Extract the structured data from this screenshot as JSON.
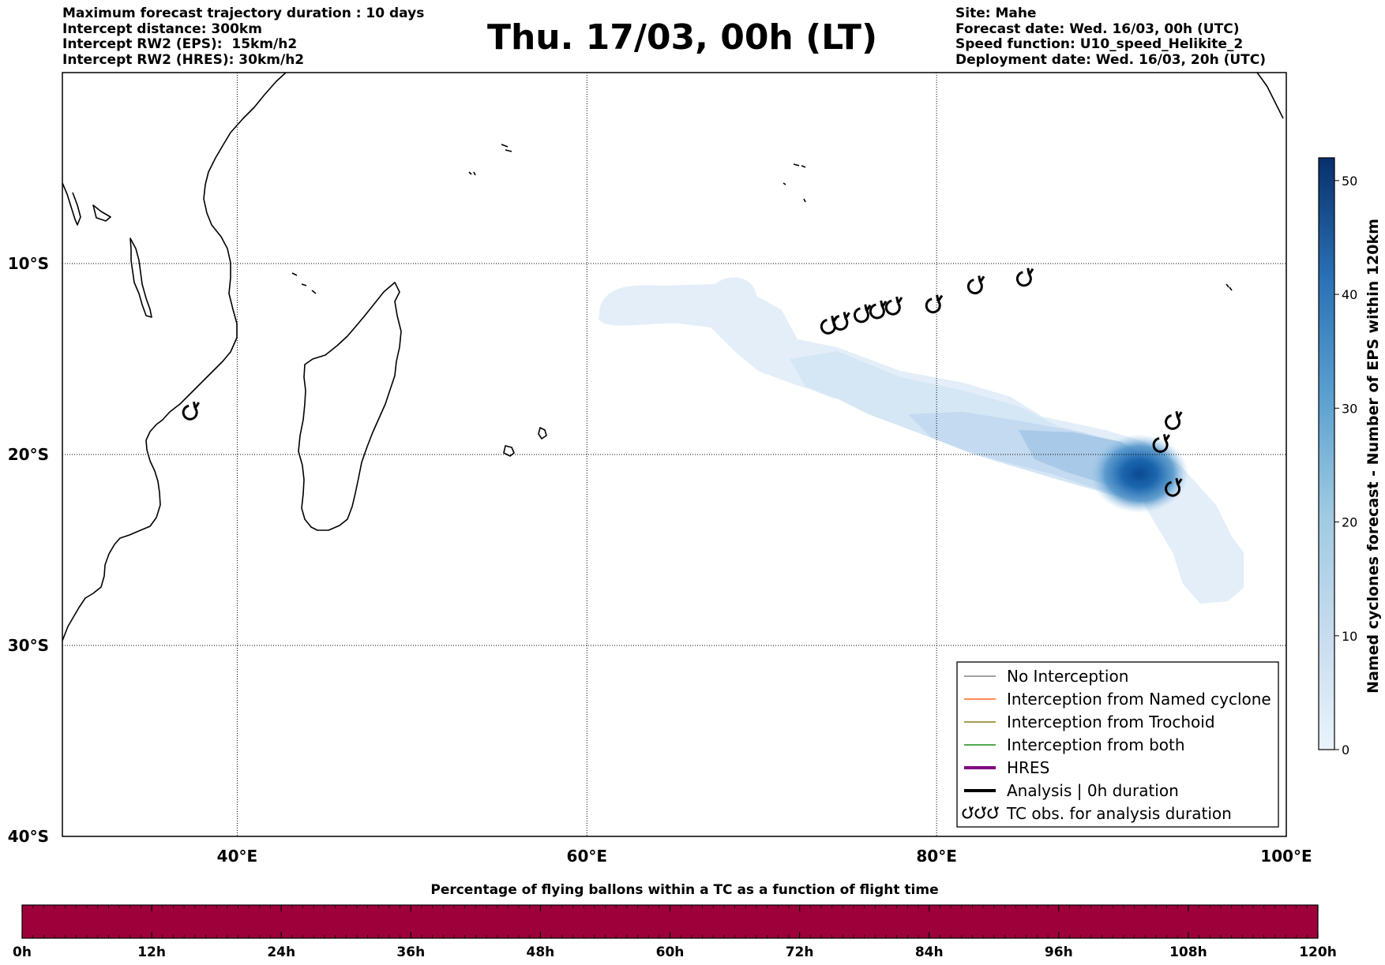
{
  "header_left": [
    "Maximum forecast trajectory duration : 10 days",
    "Intercept distance: 300km",
    "Intercept RW2 (EPS):  15km/h2",
    "Intercept RW2 (HRES): 30km/h2"
  ],
  "header_right": [
    "Site: Mahe",
    "Forecast date: Wed. 16/03, 00h (UTC)",
    "Speed function: U10_speed_Helikite_2",
    "Deployment date: Wed. 16/03, 20h (UTC)"
  ],
  "title": "Thu. 17/03, 00h (LT)",
  "map": {
    "lon_range": [
      30,
      100
    ],
    "lat_range": [
      -40,
      0
    ],
    "lat_gridlines": [
      -10,
      -20,
      -30
    ],
    "lon_gridlines": [
      40,
      60,
      80
    ],
    "lat_labels": [
      {
        "lat": -10,
        "text": "10°S"
      },
      {
        "lat": -20,
        "text": "20°S"
      },
      {
        "lat": -30,
        "text": "30°S"
      },
      {
        "lat": -40,
        "text": "40°S"
      }
    ],
    "lon_labels": [
      {
        "lon": 40,
        "text": "40°E"
      },
      {
        "lon": 60,
        "text": "60°E"
      },
      {
        "lon": 80,
        "text": "80°E"
      },
      {
        "lon": 100,
        "text": "100°E"
      }
    ],
    "coastline_color": "#000000",
    "density_core": {
      "lon": 91.6,
      "lat": -21.0,
      "value": 52
    },
    "tc_observations": [
      {
        "lon": 37.3,
        "lat": -17.8
      },
      {
        "lon": 73.8,
        "lat": -13.3
      },
      {
        "lon": 74.5,
        "lat": -13.1
      },
      {
        "lon": 75.7,
        "lat": -12.7
      },
      {
        "lon": 76.6,
        "lat": -12.5
      },
      {
        "lon": 77.5,
        "lat": -12.3
      },
      {
        "lon": 79.8,
        "lat": -12.2
      },
      {
        "lon": 82.2,
        "lat": -11.2
      },
      {
        "lon": 85.0,
        "lat": -10.8
      },
      {
        "lon": 92.8,
        "lat": -19.5
      },
      {
        "lon": 93.5,
        "lat": -18.3
      },
      {
        "lon": 93.5,
        "lat": -21.8
      }
    ]
  },
  "legend": [
    {
      "label": "No Interception",
      "color": "#808080",
      "width": 1.5
    },
    {
      "label": "Interception from Named cyclone",
      "color": "#ff6a1f",
      "width": 1.5
    },
    {
      "label": "Interception from Trochoid",
      "color": "#8c7b13",
      "width": 1.5
    },
    {
      "label": "Interception from both",
      "color": "#1a8c1a",
      "width": 1.5
    },
    {
      "label": "HRES",
      "color": "#800080",
      "width": 4
    },
    {
      "label": "Analysis | 0h duration",
      "color": "#000000",
      "width": 4
    },
    {
      "label": "TC obs. for analysis duration",
      "color": "#000000",
      "symbol": "tc"
    }
  ],
  "colorbar": {
    "title": "Named cyclones forecast - Number of EPS within 120km",
    "range": [
      0,
      52
    ],
    "ticks": [
      "0",
      "10",
      "20",
      "30",
      "40",
      "50"
    ],
    "tick_values": [
      0,
      10,
      20,
      30,
      40,
      50
    ],
    "color_low": "#e4eff9",
    "color_high": "#08306b"
  },
  "flight_bar": {
    "title": "Percentage of flying ballons within a TC as a function of flight time",
    "fill_color": "#9e003a",
    "ticks": [
      "0h",
      "12h",
      "24h",
      "36h",
      "48h",
      "60h",
      "72h",
      "84h",
      "96h",
      "108h",
      "120h"
    ]
  }
}
